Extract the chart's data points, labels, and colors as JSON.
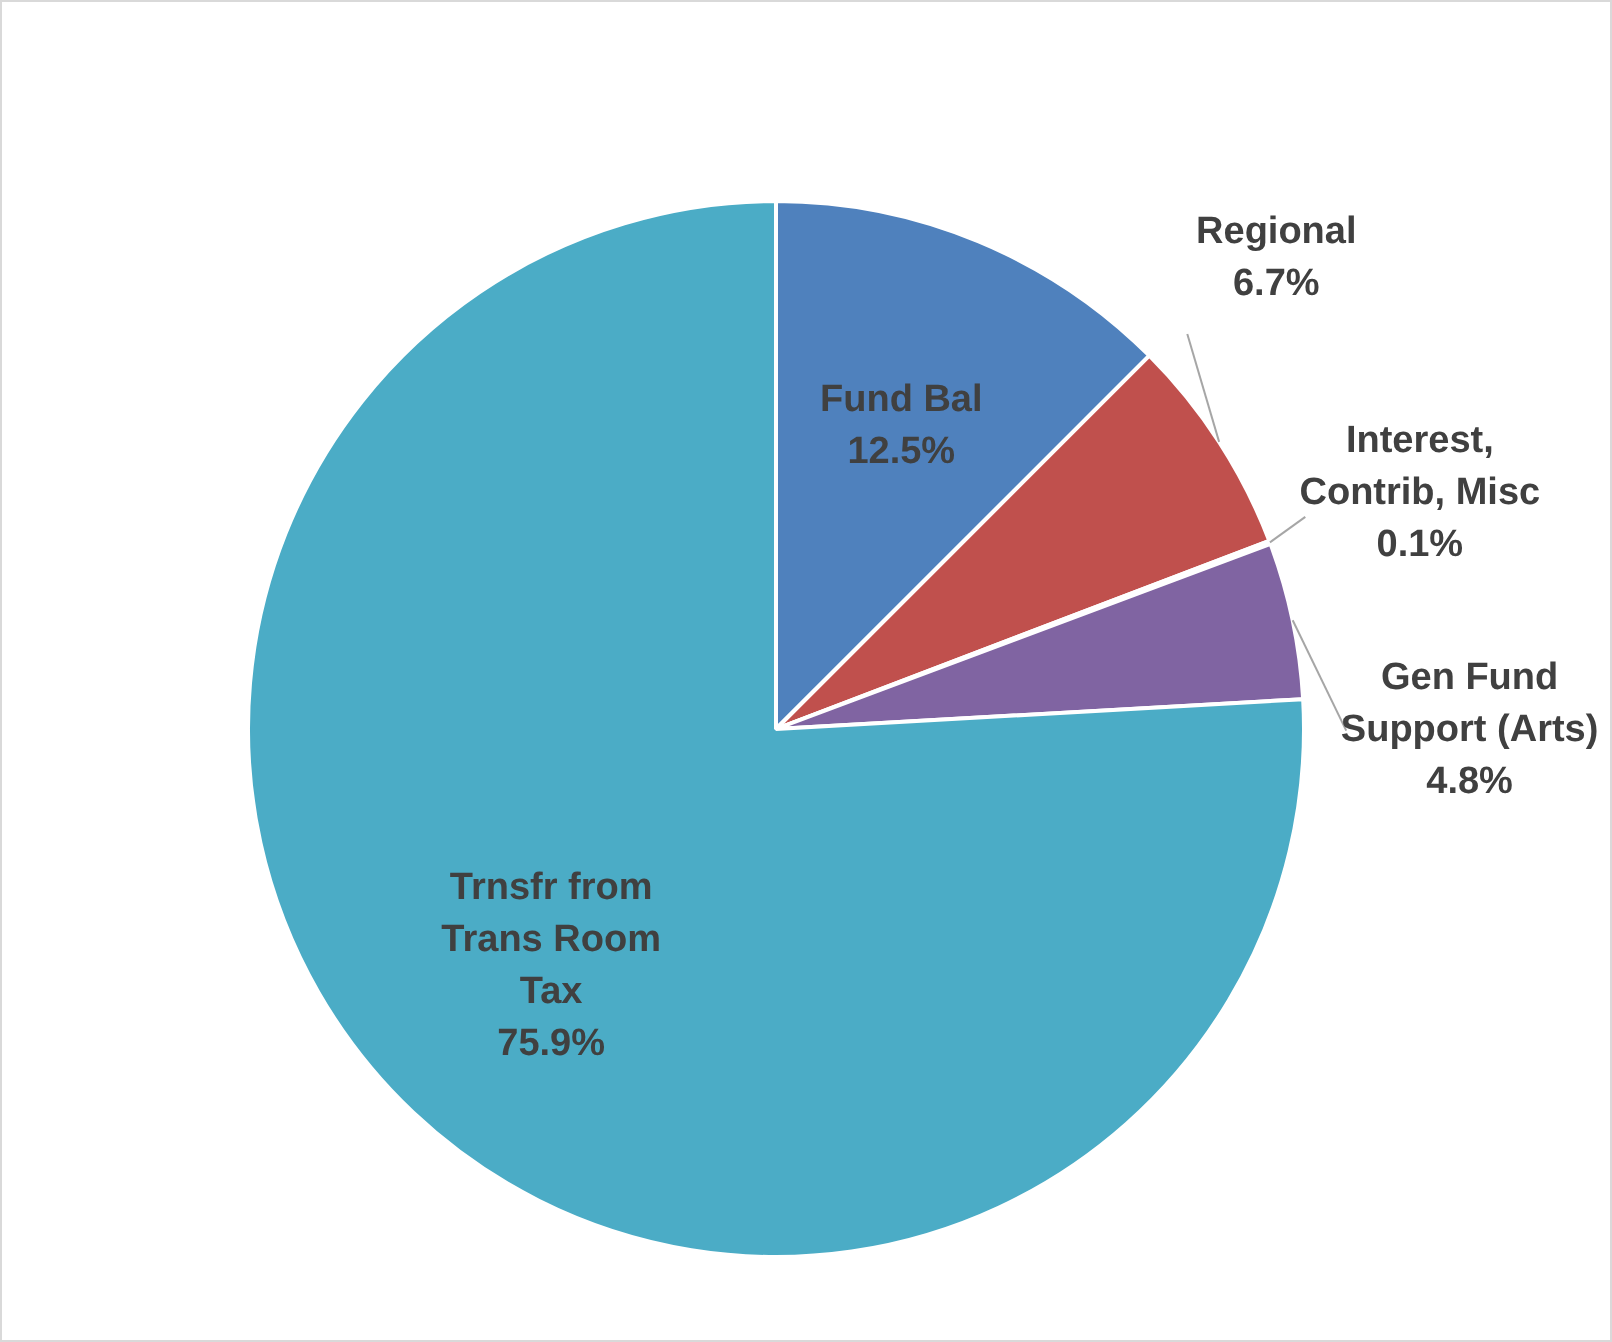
{
  "chart_data": {
    "type": "pie",
    "categories": [
      "Fund Bal",
      "Regional",
      "Interest, Contrib, Misc",
      "Gen Fund Support (Arts)",
      "Trnsfr from Trans Room Tax"
    ],
    "values": [
      12.5,
      6.7,
      0.1,
      4.8,
      75.9
    ],
    "value_labels": [
      "12.5%",
      "6.7%",
      "0.1%",
      "4.8%",
      "75.9%"
    ],
    "colors": [
      "#4f81bd",
      "#c0504d",
      "#9bbb59",
      "#8064a2",
      "#4bacc6"
    ],
    "legend": false
  }
}
